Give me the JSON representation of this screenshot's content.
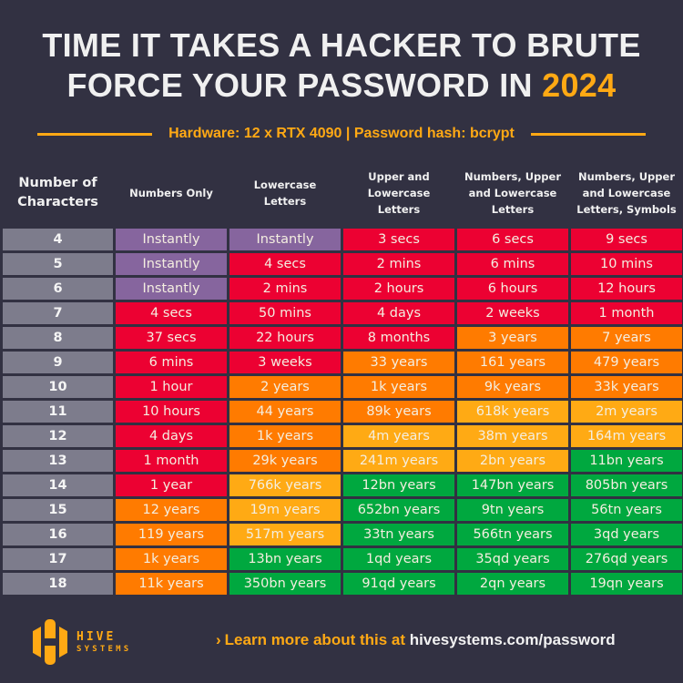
{
  "title": {
    "line1": "TIME IT TAKES A HACKER TO BRUTE",
    "line2_prefix": "FORCE YOUR PASSWORD IN ",
    "year": "2024"
  },
  "subtitle": "Hardware: 12 x RTX 4090 | Password hash: bcrypt",
  "colors": {
    "background": "#323142",
    "accent": "#ffa914",
    "instant": "#86659e",
    "red": "#ec0132",
    "orange": "#ff7b00",
    "yellow": "#ffaa14",
    "green": "#00a83f",
    "row_header": "#7d7c8c"
  },
  "table": {
    "headers": [
      "Number of Characters",
      "Numbers Only",
      "Lowercase Letters",
      "Upper and Lowercase Letters",
      "Numbers, Upper and Lowercase Letters",
      "Numbers, Upper and Lowercase Letters, Symbols"
    ],
    "rows": [
      {
        "chars": "4",
        "cells": [
          [
            "Instantly",
            "purple"
          ],
          [
            "Instantly",
            "purple"
          ],
          [
            "3 secs",
            "red"
          ],
          [
            "6 secs",
            "red"
          ],
          [
            "9 secs",
            "red"
          ]
        ]
      },
      {
        "chars": "5",
        "cells": [
          [
            "Instantly",
            "purple"
          ],
          [
            "4 secs",
            "red"
          ],
          [
            "2 mins",
            "red"
          ],
          [
            "6 mins",
            "red"
          ],
          [
            "10 mins",
            "red"
          ]
        ]
      },
      {
        "chars": "6",
        "cells": [
          [
            "Instantly",
            "purple"
          ],
          [
            "2 mins",
            "red"
          ],
          [
            "2 hours",
            "red"
          ],
          [
            "6 hours",
            "red"
          ],
          [
            "12 hours",
            "red"
          ]
        ]
      },
      {
        "chars": "7",
        "cells": [
          [
            "4 secs",
            "red"
          ],
          [
            "50 mins",
            "red"
          ],
          [
            "4 days",
            "red"
          ],
          [
            "2 weeks",
            "red"
          ],
          [
            "1 month",
            "red"
          ]
        ]
      },
      {
        "chars": "8",
        "cells": [
          [
            "37 secs",
            "red"
          ],
          [
            "22 hours",
            "red"
          ],
          [
            "8 months",
            "red"
          ],
          [
            "3 years",
            "orange"
          ],
          [
            "7 years",
            "orange"
          ]
        ]
      },
      {
        "chars": "9",
        "cells": [
          [
            "6 mins",
            "red"
          ],
          [
            "3 weeks",
            "red"
          ],
          [
            "33 years",
            "orange"
          ],
          [
            "161 years",
            "orange"
          ],
          [
            "479 years",
            "orange"
          ]
        ]
      },
      {
        "chars": "10",
        "cells": [
          [
            "1 hour",
            "red"
          ],
          [
            "2 years",
            "orange"
          ],
          [
            "1k years",
            "orange"
          ],
          [
            "9k years",
            "orange"
          ],
          [
            "33k years",
            "orange"
          ]
        ]
      },
      {
        "chars": "11",
        "cells": [
          [
            "10 hours",
            "red"
          ],
          [
            "44 years",
            "orange"
          ],
          [
            "89k years",
            "orange"
          ],
          [
            "618k years",
            "yellow"
          ],
          [
            "2m years",
            "yellow"
          ]
        ]
      },
      {
        "chars": "12",
        "cells": [
          [
            "4 days",
            "red"
          ],
          [
            "1k years",
            "orange"
          ],
          [
            "4m years",
            "yellow"
          ],
          [
            "38m years",
            "yellow"
          ],
          [
            "164m years",
            "yellow"
          ]
        ]
      },
      {
        "chars": "13",
        "cells": [
          [
            "1 month",
            "red"
          ],
          [
            "29k years",
            "orange"
          ],
          [
            "241m years",
            "yellow"
          ],
          [
            "2bn years",
            "yellow"
          ],
          [
            "11bn years",
            "green"
          ]
        ]
      },
      {
        "chars": "14",
        "cells": [
          [
            "1 year",
            "red"
          ],
          [
            "766k years",
            "yellow"
          ],
          [
            "12bn years",
            "green"
          ],
          [
            "147bn years",
            "green"
          ],
          [
            "805bn years",
            "green"
          ]
        ]
      },
      {
        "chars": "15",
        "cells": [
          [
            "12 years",
            "orange"
          ],
          [
            "19m years",
            "yellow"
          ],
          [
            "652bn years",
            "green"
          ],
          [
            "9tn years",
            "green"
          ],
          [
            "56tn years",
            "green"
          ]
        ]
      },
      {
        "chars": "16",
        "cells": [
          [
            "119 years",
            "orange"
          ],
          [
            "517m years",
            "yellow"
          ],
          [
            "33tn years",
            "green"
          ],
          [
            "566tn years",
            "green"
          ],
          [
            "3qd years",
            "green"
          ]
        ]
      },
      {
        "chars": "17",
        "cells": [
          [
            "1k years",
            "orange"
          ],
          [
            "13bn years",
            "green"
          ],
          [
            "1qd years",
            "green"
          ],
          [
            "35qd years",
            "green"
          ],
          [
            "276qd years",
            "green"
          ]
        ]
      },
      {
        "chars": "18",
        "cells": [
          [
            "11k years",
            "orange"
          ],
          [
            "350bn years",
            "green"
          ],
          [
            "91qd years",
            "green"
          ],
          [
            "2qn years",
            "green"
          ],
          [
            "19qn years",
            "green"
          ]
        ]
      }
    ]
  },
  "footer": {
    "logo_line1": "HIVE",
    "logo_line2": "SYSTEMS",
    "cta_chevron": "›",
    "cta_lead": "Learn more about this at ",
    "cta_link": "hivesystems.com/password"
  }
}
